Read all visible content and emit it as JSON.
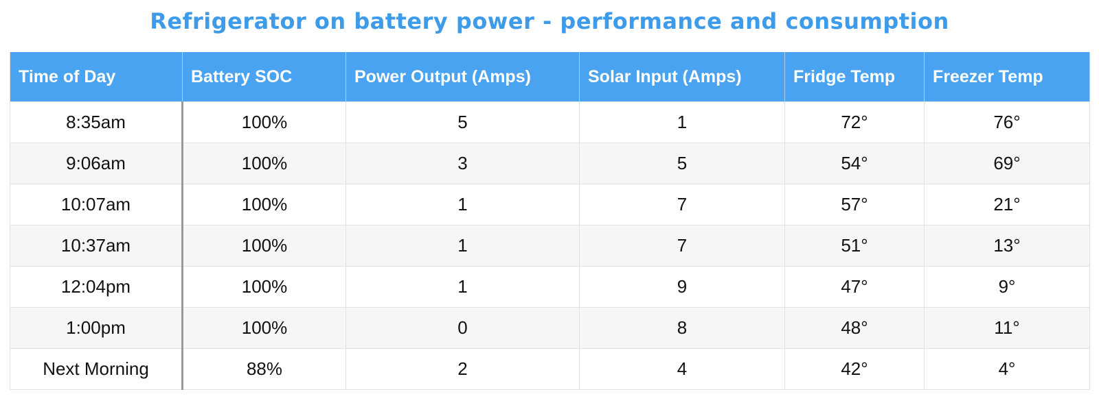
{
  "title": "Refrigerator on battery power - performance and consumption",
  "table": {
    "header": [
      "Time of Day",
      "Battery SOC",
      "Power Output (Amps)",
      "Solar Input (Amps)",
      "Fridge Temp",
      "Freezer Temp"
    ],
    "rows": [
      [
        "8:35am",
        "100%",
        "5",
        "1",
        "72°",
        "76°"
      ],
      [
        "9:06am",
        "100%",
        "3",
        "5",
        "54°",
        "69°"
      ],
      [
        "10:07am",
        "100%",
        "1",
        "7",
        "57°",
        "21°"
      ],
      [
        "10:37am",
        "100%",
        "1",
        "7",
        "51°",
        "13°"
      ],
      [
        "12:04pm",
        "100%",
        "1",
        "9",
        "47°",
        "9°"
      ],
      [
        "1:00pm",
        "100%",
        "0",
        "8",
        "48°",
        "11°"
      ],
      [
        "Next Morning",
        "88%",
        "2",
        "4",
        "42°",
        "4°"
      ]
    ]
  }
}
